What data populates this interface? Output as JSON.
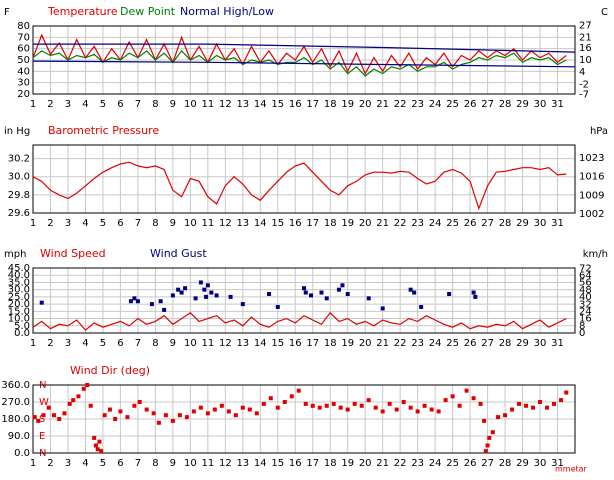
{
  "chart_data": [
    {
      "type": "line",
      "ylabel": "F",
      "y2label": "C",
      "xlim": [
        1,
        32
      ],
      "xticks": [
        1,
        2,
        3,
        4,
        5,
        6,
        7,
        8,
        9,
        10,
        11,
        12,
        13,
        14,
        15,
        16,
        17,
        18,
        19,
        20,
        21,
        22,
        23,
        24,
        25,
        26,
        27,
        28,
        29,
        30,
        31
      ],
      "ylim": [
        20,
        80
      ],
      "yticks": [
        20,
        30,
        40,
        50,
        60,
        70,
        80
      ],
      "y2lim": [
        -6.67,
        26.67
      ],
      "y2ticks": [
        27,
        21,
        16,
        10,
        4,
        -2,
        -7
      ],
      "grid": true,
      "x": [
        1,
        1.5,
        2,
        2.5,
        3,
        3.5,
        4,
        4.5,
        5,
        5.5,
        6,
        6.5,
        7,
        7.5,
        8,
        8.5,
        9,
        9.5,
        10,
        10.5,
        11,
        11.5,
        12,
        12.5,
        13,
        13.5,
        14,
        14.5,
        15,
        15.5,
        16,
        16.5,
        17,
        17.5,
        18,
        18.5,
        19,
        19.5,
        20,
        20.5,
        21,
        21.5,
        22,
        22.5,
        23,
        23.5,
        24,
        24.5,
        25,
        25.5,
        26,
        26.5,
        27,
        27.5,
        28,
        28.5,
        29,
        29.5,
        30,
        30.5,
        31,
        31.5
      ],
      "series": [
        {
          "name": "Temperature",
          "color": "#e00000",
          "values": [
            52,
            72,
            55,
            65,
            50,
            68,
            52,
            62,
            48,
            60,
            50,
            66,
            52,
            68,
            50,
            64,
            48,
            70,
            50,
            62,
            48,
            64,
            50,
            60,
            46,
            62,
            48,
            58,
            46,
            56,
            50,
            62,
            48,
            60,
            44,
            58,
            40,
            56,
            38,
            52,
            40,
            54,
            44,
            56,
            42,
            52,
            46,
            56,
            44,
            54,
            50,
            58,
            52,
            58,
            54,
            60,
            50,
            58,
            52,
            56,
            48,
            54
          ]
        },
        {
          "name": "Dew Point",
          "color": "#008000",
          "values": [
            52,
            58,
            54,
            56,
            50,
            54,
            52,
            55,
            48,
            52,
            50,
            56,
            52,
            58,
            50,
            56,
            48,
            58,
            50,
            54,
            48,
            54,
            50,
            52,
            46,
            50,
            48,
            50,
            46,
            48,
            48,
            52,
            46,
            50,
            42,
            48,
            38,
            44,
            36,
            42,
            38,
            44,
            42,
            46,
            40,
            44,
            44,
            48,
            42,
            46,
            48,
            52,
            50,
            54,
            52,
            56,
            48,
            52,
            50,
            52,
            46,
            50
          ]
        },
        {
          "name": "Normal High/Low",
          "color": "#000080",
          "x": [
            1,
            11,
            21,
            32
          ],
          "values": [
            64,
            64,
            61,
            57
          ]
        },
        {
          "color": "#000080",
          "x": [
            1,
            11,
            21,
            32
          ],
          "values": [
            49,
            48,
            46,
            44
          ]
        }
      ]
    },
    {
      "type": "line",
      "title": "Barometric Pressure",
      "ylabel": "in Hg",
      "y2label": "hPa",
      "xlim": [
        1,
        32
      ],
      "xticks": [
        1,
        2,
        3,
        4,
        5,
        6,
        7,
        8,
        9,
        10,
        11,
        12,
        13,
        14,
        15,
        16,
        17,
        18,
        19,
        20,
        21,
        22,
        23,
        24,
        25,
        26,
        27,
        28,
        29,
        30,
        31
      ],
      "ylim": [
        29.6,
        30.35
      ],
      "yticks": [
        29.6,
        29.8,
        {
          "value": 30.0,
          "label": "30.0"
        },
        30.2
      ],
      "y2lim": [
        1002.4,
        1027.8
      ],
      "y2ticks": [
        1002,
        1009,
        1016,
        1023
      ],
      "grid": true,
      "x": [
        1,
        1.5,
        2,
        2.5,
        3,
        3.5,
        4,
        4.5,
        5,
        5.5,
        6,
        6.5,
        7,
        7.5,
        8,
        8.5,
        9,
        9.5,
        10,
        10.5,
        11,
        11.5,
        12,
        12.5,
        13,
        13.5,
        14,
        14.5,
        15,
        15.5,
        16,
        16.5,
        17,
        17.5,
        18,
        18.5,
        19,
        19.5,
        20,
        20.5,
        21,
        21.5,
        22,
        22.5,
        23,
        23.5,
        24,
        24.5,
        25,
        25.5,
        26,
        26.5,
        27,
        27.5,
        28,
        28.5,
        29,
        29.5,
        30,
        30.5,
        31,
        31.5
      ],
      "series": [
        {
          "color": "#e00000",
          "values": [
            30.0,
            29.95,
            29.85,
            29.8,
            29.76,
            29.82,
            29.9,
            29.98,
            30.05,
            30.1,
            30.14,
            30.16,
            30.12,
            30.1,
            30.12,
            30.08,
            29.85,
            29.78,
            29.98,
            29.95,
            29.78,
            29.7,
            29.9,
            30.0,
            29.92,
            29.8,
            29.74,
            29.85,
            29.95,
            30.05,
            30.12,
            30.15,
            30.05,
            29.95,
            29.85,
            29.8,
            29.9,
            29.95,
            30.02,
            30.05,
            30.05,
            30.04,
            30.06,
            30.05,
            29.98,
            29.92,
            29.95,
            30.05,
            30.08,
            30.04,
            29.95,
            29.65,
            29.9,
            30.05,
            30.06,
            30.08,
            30.1,
            30.1,
            30.08,
            30.1,
            30.02,
            30.03
          ]
        }
      ]
    },
    {
      "type": "line",
      "ylabel": "mph",
      "y2label": "km/h",
      "xlim": [
        1,
        32
      ],
      "xticks": [
        1,
        2,
        3,
        4,
        5,
        6,
        7,
        8,
        9,
        10,
        11,
        12,
        13,
        14,
        15,
        16,
        17,
        18,
        19,
        20,
        21,
        22,
        23,
        24,
        25,
        26,
        27,
        28,
        29,
        30,
        31
      ],
      "ylim": [
        0,
        45
      ],
      "yticks": [
        {
          "value": 0,
          "label": "0.0"
        },
        {
          "value": 5,
          "label": "5.0"
        },
        {
          "value": 10,
          "label": "10.0"
        },
        {
          "value": 15,
          "label": "15.0"
        },
        {
          "value": 20,
          "label": "20.0"
        },
        {
          "value": 25,
          "label": "25.0"
        },
        {
          "value": 30,
          "label": "30.0"
        },
        {
          "value": 35,
          "label": "35.0"
        },
        {
          "value": 40,
          "label": "40.0"
        },
        {
          "value": 45,
          "label": "45.0"
        }
      ],
      "y2lim": [
        0,
        72.4
      ],
      "y2ticks": [
        0,
        8,
        16,
        24,
        32,
        40,
        48,
        56,
        64,
        72
      ],
      "grid": true,
      "x": [
        1,
        1.5,
        2,
        2.5,
        3,
        3.5,
        4,
        4.5,
        5,
        5.5,
        6,
        6.5,
        7,
        7.5,
        8,
        8.5,
        9,
        9.5,
        10,
        10.5,
        11,
        11.5,
        12,
        12.5,
        13,
        13.5,
        14,
        14.5,
        15,
        15.5,
        16,
        16.5,
        17,
        17.5,
        18,
        18.5,
        19,
        19.5,
        20,
        20.5,
        21,
        21.5,
        22,
        22.5,
        23,
        23.5,
        24,
        24.5,
        25,
        25.5,
        26,
        26.5,
        27,
        27.5,
        28,
        28.5,
        29,
        29.5,
        30,
        30.5,
        31,
        31.5
      ],
      "series": [
        {
          "name": "Wind Speed",
          "color": "#e00000",
          "values": [
            4,
            8,
            3,
            6,
            5,
            9,
            2,
            7,
            4,
            6,
            8,
            5,
            10,
            6,
            8,
            12,
            6,
            10,
            14,
            8,
            10,
            12,
            7,
            9,
            5,
            11,
            6,
            4,
            8,
            10,
            7,
            12,
            9,
            6,
            14,
            8,
            10,
            6,
            8,
            5,
            9,
            7,
            6,
            10,
            8,
            12,
            9,
            6,
            4,
            7,
            3,
            5,
            4,
            6,
            5,
            8,
            3,
            6,
            9,
            4,
            7,
            10
          ]
        },
        {
          "name": "Wind Gust",
          "color": "#000080",
          "type": "scatter",
          "x": [
            1.5,
            6.6,
            6.8,
            7.0,
            7.8,
            8.3,
            8.5,
            9.0,
            9.3,
            9.5,
            9.7,
            10.3,
            10.6,
            10.8,
            10.9,
            11.0,
            11.2,
            11.5,
            12.3,
            13.0,
            14.5,
            15.0,
            16.5,
            16.6,
            16.9,
            17.5,
            17.8,
            18.5,
            18.7,
            19.0,
            20.2,
            21.0,
            22.6,
            22.8,
            23.2,
            24.8,
            26.2,
            26.3
          ],
          "values": [
            21,
            22,
            24,
            22,
            20,
            22,
            16,
            26,
            30,
            28,
            31,
            24,
            35,
            30,
            25,
            33,
            28,
            26,
            25,
            20,
            27,
            18,
            31,
            28,
            26,
            28,
            24,
            30,
            33,
            27,
            24,
            17,
            30,
            28,
            18,
            27,
            28,
            25
          ]
        }
      ]
    },
    {
      "type": "scatter",
      "title": "Wind Dir (deg)",
      "note": "mmetar",
      "xlim": [
        1,
        32
      ],
      "xticks": [
        1,
        2,
        3,
        4,
        5,
        6,
        7,
        8,
        9,
        10,
        11,
        12,
        13,
        14,
        15,
        16,
        17,
        18,
        19,
        20,
        21,
        22,
        23,
        24,
        25,
        26,
        27,
        28,
        29,
        30,
        31
      ],
      "ylim": [
        0,
        360
      ],
      "yticks": [
        {
          "value": 0,
          "label": "0.0"
        },
        {
          "value": 90,
          "label": "90.0"
        },
        {
          "value": 180,
          "label": "180.0"
        },
        {
          "value": 270,
          "label": "270.0"
        },
        {
          "value": 360,
          "label": "360.0"
        }
      ],
      "compass": [
        {
          "value": 0,
          "label": "N"
        },
        {
          "value": 90,
          "label": "E"
        },
        {
          "value": 180,
          "label": "S"
        },
        {
          "value": 270,
          "label": "W"
        },
        {
          "value": 360,
          "label": "N"
        }
      ],
      "grid": true,
      "series": [
        {
          "color": "#e00000",
          "x": [
            1.1,
            1.3,
            1.6,
            1.9,
            2.2,
            2.5,
            2.8,
            3.1,
            3.3,
            3.6,
            3.9,
            4.1,
            4.3,
            4.5,
            4.6,
            4.7,
            4.8,
            4.9,
            5.1,
            5.4,
            5.7,
            6.0,
            6.4,
            6.8,
            7.1,
            7.5,
            7.9,
            8.2,
            8.6,
            9.0,
            9.4,
            9.8,
            10.2,
            10.6,
            11.0,
            11.4,
            11.8,
            12.2,
            12.6,
            13.0,
            13.4,
            13.8,
            14.2,
            14.6,
            15.0,
            15.4,
            15.8,
            16.2,
            16.6,
            17.0,
            17.4,
            17.8,
            18.2,
            18.6,
            19.0,
            19.4,
            19.8,
            20.2,
            20.6,
            21.0,
            21.4,
            21.8,
            22.2,
            22.6,
            23.0,
            23.4,
            23.8,
            24.2,
            24.6,
            25.0,
            25.4,
            25.8,
            26.2,
            26.6,
            26.8,
            26.9,
            27.0,
            27.1,
            27.3,
            27.6,
            28.0,
            28.4,
            28.8,
            29.2,
            29.6,
            30.0,
            30.4,
            30.8,
            31.2,
            31.5
          ],
          "values": [
            190,
            170,
            200,
            240,
            200,
            180,
            210,
            260,
            280,
            300,
            340,
            360,
            250,
            80,
            40,
            20,
            60,
            10,
            200,
            230,
            180,
            220,
            190,
            250,
            270,
            230,
            210,
            160,
            200,
            170,
            200,
            190,
            220,
            240,
            210,
            230,
            250,
            220,
            200,
            240,
            230,
            210,
            260,
            290,
            240,
            270,
            300,
            330,
            260,
            250,
            240,
            250,
            260,
            240,
            230,
            260,
            250,
            280,
            240,
            220,
            260,
            230,
            270,
            240,
            220,
            250,
            230,
            220,
            280,
            300,
            250,
            330,
            290,
            260,
            170,
            10,
            40,
            80,
            110,
            190,
            200,
            230,
            260,
            250,
            240,
            270,
            240,
            260,
            280,
            320
          ]
        }
      ]
    }
  ]
}
